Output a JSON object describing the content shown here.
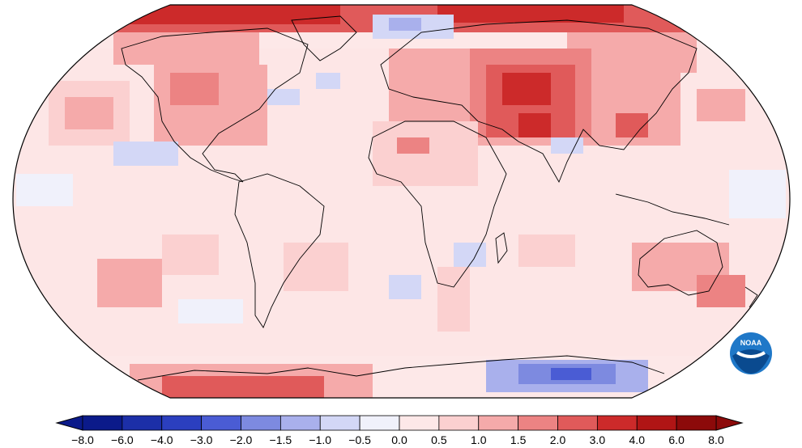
{
  "map": {
    "projection": "Robinson",
    "content": "temperature anomaly map (gridded)",
    "land_outline_color": "#000000"
  },
  "colorbar": {
    "ticks": [
      "−8.0",
      "−6.0",
      "−4.0",
      "−3.0",
      "−2.0",
      "−1.5",
      "−1.0",
      "−0.5",
      "0.0",
      "0.5",
      "1.0",
      "1.5",
      "2.0",
      "3.0",
      "4.0",
      "6.0",
      "8.0"
    ],
    "colors": [
      "#0b1a8a",
      "#1c2fa8",
      "#2b3fbf",
      "#4a5cd4",
      "#7d8ae0",
      "#a9b0ec",
      "#d3d7f6",
      "#f0f1fb",
      "#fde8e8",
      "#fbd0d0",
      "#f5aaaa",
      "#ec8383",
      "#e05a5a",
      "#cc2a2a",
      "#b01515",
      "#8c0a0a"
    ],
    "extend": "both"
  },
  "logo": {
    "name": "noaa-logo",
    "text": "NOAA",
    "colors": {
      "outer": "#1f78c8",
      "inner": "#ffffff",
      "wave": "#0a4a8f"
    }
  }
}
